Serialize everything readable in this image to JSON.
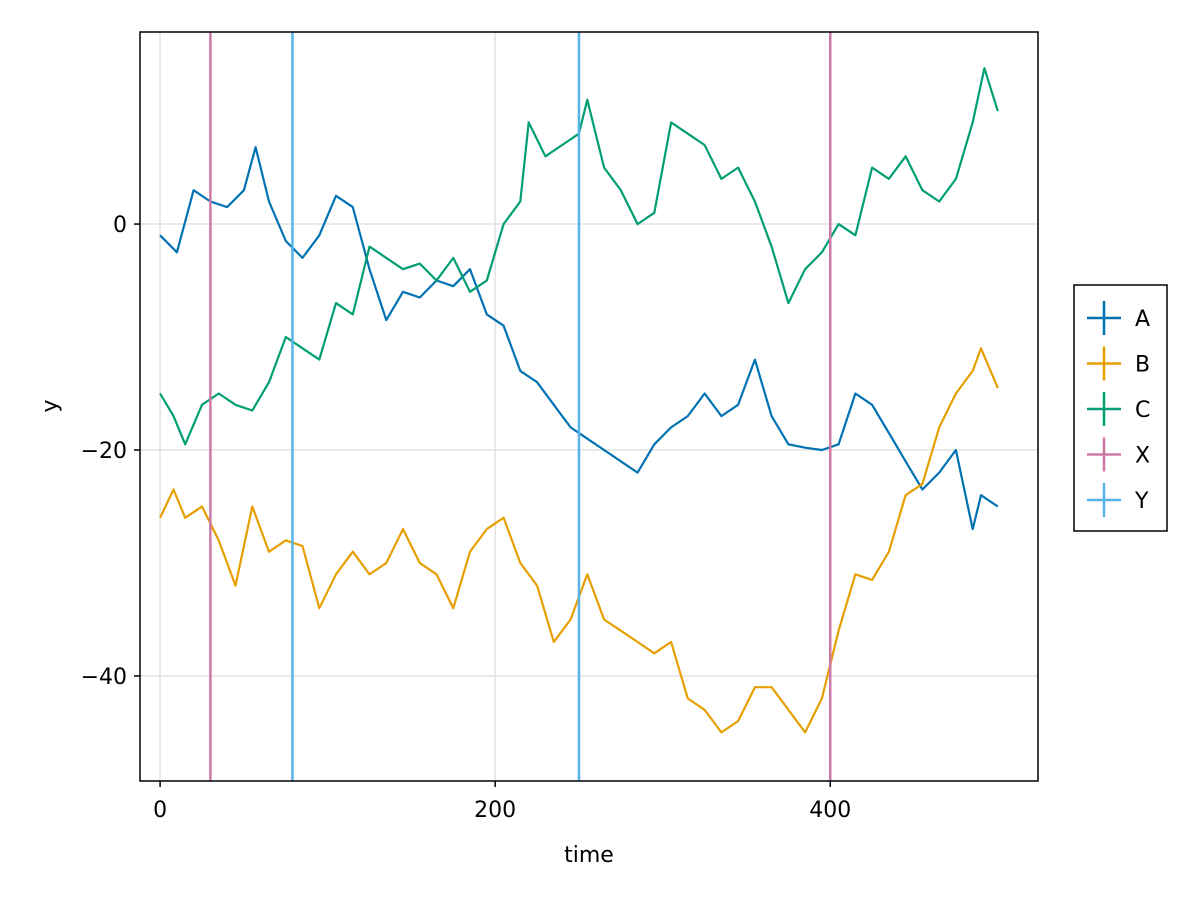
{
  "chart_data": {
    "type": "line",
    "title": "",
    "xlabel": "time",
    "ylabel": "y",
    "xlim": [
      -12,
      524
    ],
    "ylim": [
      -49.3,
      17
    ],
    "xticks": [
      0,
      200,
      400
    ],
    "yticks": [
      0,
      -20,
      -40
    ],
    "xtick_labels": [
      "0",
      "200",
      "400"
    ],
    "ytick_labels": [
      "0",
      "−20",
      "−40"
    ],
    "grid": true,
    "legend_position": "right",
    "series": [
      {
        "name": "A",
        "color": "#0072B2",
        "x": [
          0,
          10,
          20,
          30,
          40,
          50,
          57,
          65,
          75,
          85,
          95,
          105,
          115,
          125,
          135,
          145,
          155,
          165,
          175,
          185,
          195,
          205,
          215,
          225,
          235,
          245,
          255,
          265,
          275,
          285,
          295,
          305,
          315,
          325,
          335,
          345,
          355,
          365,
          375,
          385,
          395,
          405,
          415,
          425,
          435,
          445,
          455,
          465,
          475,
          485,
          490,
          500
        ],
        "y": [
          -1,
          -2.5,
          3,
          2,
          1.5,
          3,
          6.8,
          2,
          -1.5,
          -3,
          -1,
          2.5,
          1.5,
          -4,
          -8.5,
          -6,
          -6.5,
          -5,
          -5.5,
          -4,
          -8,
          -9,
          -13,
          -14,
          -16,
          -18,
          -19,
          -20,
          -21,
          -22,
          -19.5,
          -18,
          -17,
          -15,
          -17,
          -16,
          -12,
          -17,
          -19.5,
          -19.8,
          -20,
          -19.5,
          -15,
          -16,
          -18.5,
          -21,
          -23.5,
          -22,
          -20,
          -27,
          -24,
          -25
        ]
      },
      {
        "name": "B",
        "color": "#E69F00",
        "x": [
          0,
          8,
          15,
          25,
          35,
          45,
          55,
          65,
          75,
          85,
          95,
          105,
          115,
          125,
          135,
          145,
          155,
          165,
          175,
          185,
          195,
          205,
          215,
          225,
          235,
          245,
          255,
          265,
          275,
          285,
          295,
          305,
          315,
          325,
          335,
          345,
          355,
          365,
          375,
          385,
          395,
          405,
          415,
          425,
          435,
          445,
          455,
          465,
          475,
          485,
          490,
          500
        ],
        "y": [
          -26,
          -23.5,
          -26,
          -25,
          -28,
          -32,
          -25,
          -29,
          -28,
          -28.5,
          -34,
          -31,
          -29,
          -31,
          -30,
          -27,
          -30,
          -31,
          -34,
          -29,
          -27,
          -26,
          -30,
          -32,
          -37,
          -35,
          -31,
          -35,
          -36,
          -37,
          -38,
          -37,
          -42,
          -43,
          -45,
          -44,
          -41,
          -41,
          -43,
          -45,
          -42,
          -36,
          -31,
          -31.5,
          -29,
          -24,
          -23,
          -18,
          -15,
          -13,
          -11,
          -14.5
        ]
      },
      {
        "name": "C",
        "color": "#009E73",
        "x": [
          0,
          8,
          15,
          25,
          35,
          45,
          55,
          65,
          75,
          85,
          95,
          105,
          115,
          125,
          135,
          145,
          155,
          165,
          175,
          185,
          195,
          205,
          215,
          220,
          230,
          240,
          250,
          255,
          265,
          275,
          285,
          295,
          305,
          315,
          325,
          335,
          345,
          355,
          365,
          375,
          385,
          395,
          405,
          415,
          425,
          435,
          445,
          455,
          465,
          475,
          485,
          492,
          500
        ],
        "y": [
          -15,
          -17,
          -19.5,
          -16,
          -15,
          -16,
          -16.5,
          -14,
          -10,
          -11,
          -12,
          -7,
          -8,
          -2,
          -3,
          -4,
          -3.5,
          -5,
          -3,
          -6,
          -5,
          0,
          2,
          9,
          6,
          7,
          8,
          11,
          5,
          3,
          0,
          1,
          9,
          8,
          7,
          4,
          5,
          2,
          -2,
          -7,
          -4,
          -2.5,
          0,
          -1,
          5,
          4,
          6,
          3,
          2,
          4,
          9,
          13.8,
          10
        ]
      },
      {
        "name": "X",
        "color": "#CC79A7",
        "vlines": [
          30,
          400
        ]
      },
      {
        "name": "Y",
        "color": "#56B4E9",
        "vlines": [
          79,
          250
        ]
      }
    ]
  }
}
